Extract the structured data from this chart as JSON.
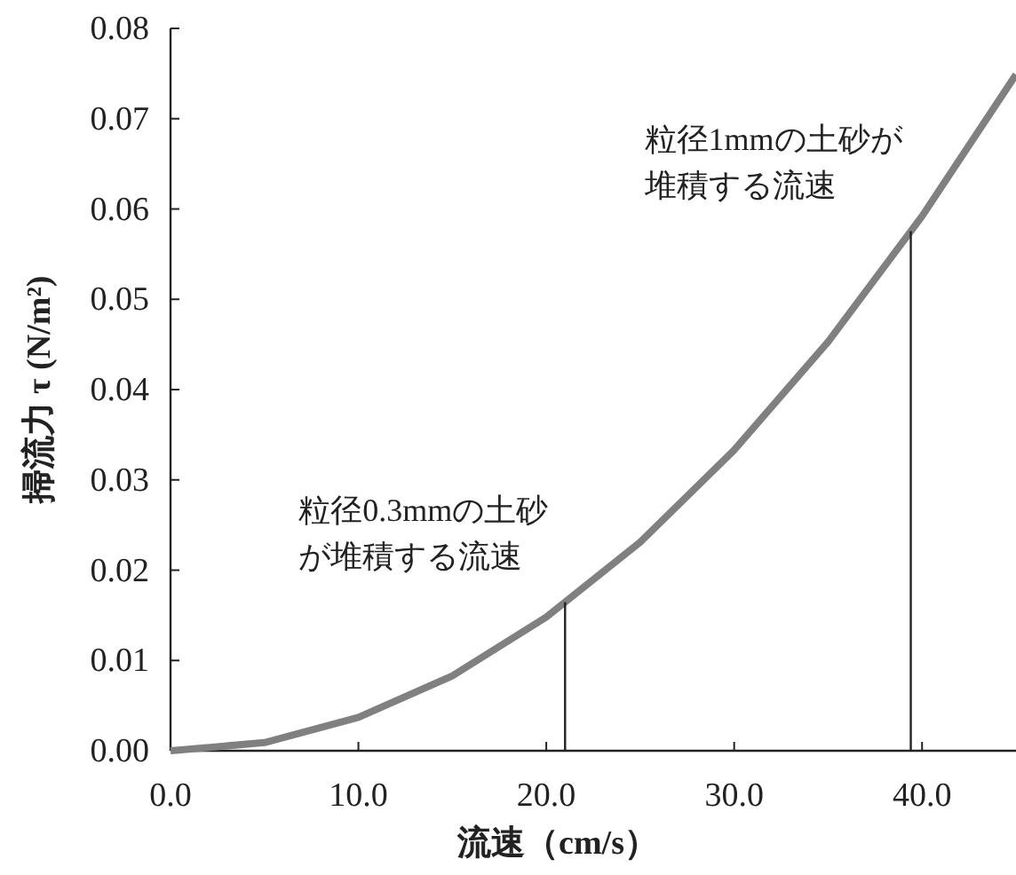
{
  "chart_data": {
    "type": "line",
    "xlabel": "流速（cm/s）",
    "ylabel": "掃流力 τ (N/m²)",
    "x": [
      0,
      5,
      10,
      15,
      20,
      25,
      30,
      35,
      40,
      45
    ],
    "series": [
      {
        "color": "#808080",
        "values": [
          0,
          0.0009,
          0.0037,
          0.0083,
          0.0148,
          0.0231,
          0.0333,
          0.0453,
          0.0592,
          0.0749
        ]
      }
    ],
    "xlim": [
      0,
      45
    ],
    "ylim": [
      0,
      0.08
    ],
    "xticks": [
      {
        "value": 0,
        "label": "0.0"
      },
      {
        "value": 10,
        "label": "10.0"
      },
      {
        "value": 20,
        "label": "20.0"
      },
      {
        "value": 30,
        "label": "30.0"
      },
      {
        "value": 40,
        "label": "40.0"
      }
    ],
    "yticks": [
      {
        "value": 0,
        "label": "0.00"
      },
      {
        "value": 0.01,
        "label": "0.01"
      },
      {
        "value": 0.02,
        "label": "0.02"
      },
      {
        "value": 0.03,
        "label": "0.03"
      },
      {
        "value": 0.04,
        "label": "0.04"
      },
      {
        "value": 0.05,
        "label": "0.05"
      },
      {
        "value": 0.06,
        "label": "0.06"
      },
      {
        "value": 0.07,
        "label": "0.07"
      },
      {
        "value": 0.08,
        "label": "0.08"
      }
    ],
    "ref_lines": [
      {
        "axis": "x",
        "value": 21.0,
        "label": "粒径0.3mmの土砂が堆積する流速",
        "color": "#222222"
      },
      {
        "axis": "x",
        "value": 39.4,
        "label": "粒径1mmの土砂が堆積する流速",
        "color": "#222222"
      }
    ],
    "grid": false,
    "line_style": "solid"
  }
}
